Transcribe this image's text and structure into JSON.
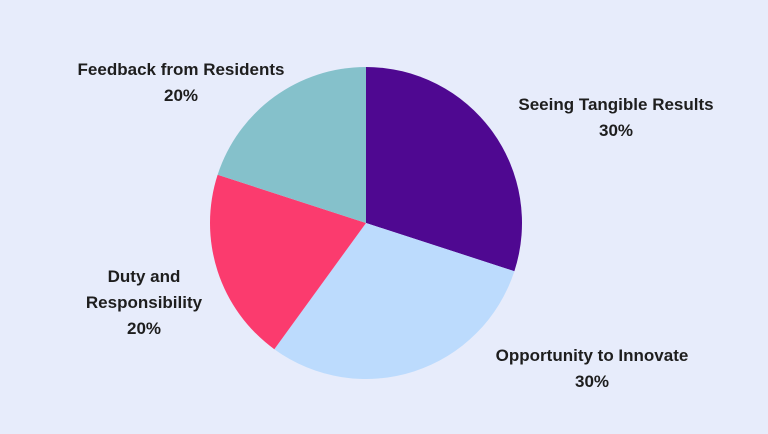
{
  "chart_data": {
    "type": "pie",
    "slices": [
      {
        "label": "Seeing Tangible Results",
        "lines": [
          "Seeing Tangible Results"
        ],
        "value": 30,
        "value_label": "30%",
        "color": "#4f0891"
      },
      {
        "label": "Opportunity to Innovate",
        "lines": [
          "Opportunity to Innovate"
        ],
        "value": 30,
        "value_label": "30%",
        "color": "#bcdbfd"
      },
      {
        "label": "Duty and Responsibility",
        "lines": [
          "Duty and",
          "Responsibility"
        ],
        "value": 20,
        "value_label": "20%",
        "color": "#fb3b6e"
      },
      {
        "label": "Feedback from Residents",
        "lines": [
          "Feedback from Residents"
        ],
        "value": 20,
        "value_label": "20%",
        "color": "#85c1cb"
      }
    ]
  }
}
